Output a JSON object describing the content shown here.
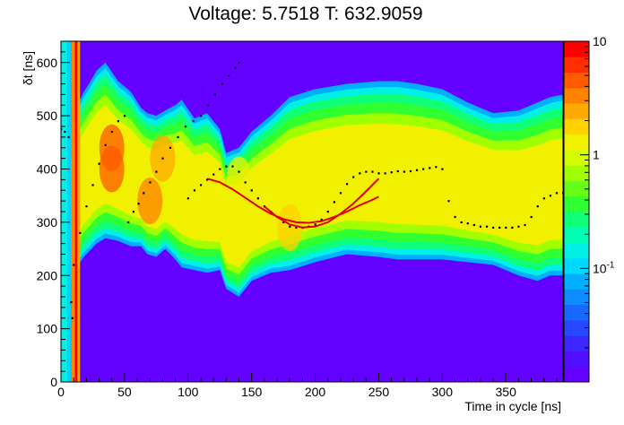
{
  "chart_data": {
    "type": "heatmap",
    "title": "Voltage: 5.7518 T: 632.9059",
    "xlabel": "Time in cycle [ns]",
    "ylabel": "δt [ns]",
    "xlim": [
      0,
      395
    ],
    "ylim": [
      0,
      640
    ],
    "x_ticks": [
      0,
      50,
      100,
      150,
      200,
      250,
      300,
      350
    ],
    "y_ticks": [
      0,
      100,
      200,
      300,
      400,
      500,
      600
    ],
    "z_scale": "log",
    "z_range": [
      0.01,
      10
    ],
    "z_tick_labels": [
      {
        "value": 10,
        "label": "10"
      },
      {
        "value": 1,
        "label": "1"
      },
      {
        "value": 0.1,
        "label": "10",
        "sup": "-1"
      }
    ],
    "background_color": "#6300ff",
    "palette": [
      "#6400ff",
      "#5010ff",
      "#3c28ff",
      "#2848ff",
      "#1868ff",
      "#0c8cff",
      "#00b0ff",
      "#00d8ff",
      "#00f0e6",
      "#00ffb4",
      "#10ff78",
      "#30ff30",
      "#64ff14",
      "#a0ff00",
      "#d2ff00",
      "#f0f000",
      "#ffd200",
      "#ffaa00",
      "#ff8200",
      "#ff5a00",
      "#ff2d00",
      "#ff0000"
    ],
    "band": {
      "x": [
        0,
        6,
        12,
        15,
        18,
        22,
        28,
        35,
        45,
        55,
        63,
        68,
        75,
        82,
        90,
        95,
        105,
        115,
        125,
        130,
        140,
        150,
        165,
        180,
        200,
        225,
        250,
        265,
        280,
        300,
        320,
        340,
        360,
        375,
        385,
        395
      ],
      "upper": [
        430,
        460,
        500,
        530,
        545,
        560,
        585,
        600,
        565,
        545,
        515,
        505,
        500,
        510,
        520,
        530,
        495,
        505,
        475,
        430,
        440,
        470,
        500,
        535,
        550,
        560,
        565,
        565,
        560,
        550,
        525,
        505,
        510,
        525,
        535,
        540
      ],
      "lower": [
        150,
        175,
        205,
        225,
        235,
        245,
        260,
        270,
        265,
        255,
        255,
        240,
        235,
        250,
        230,
        215,
        210,
        205,
        210,
        175,
        160,
        190,
        205,
        210,
        225,
        240,
        235,
        230,
        230,
        230,
        225,
        220,
        200,
        190,
        200,
        200
      ]
    },
    "stripes": [
      {
        "x": [
          0,
          5
        ],
        "level": "#00f0e6"
      },
      {
        "x": [
          5,
          8
        ],
        "level": "#00d0ff"
      },
      {
        "x": [
          8,
          11
        ],
        "level": "#ff8200"
      },
      {
        "x": [
          11,
          13
        ],
        "level": "#ff0000"
      },
      {
        "x": [
          13,
          15
        ],
        "level": "#ffaa00"
      }
    ],
    "hotspots": [
      {
        "x": 40,
        "y": 440,
        "level": "#ff5a00"
      },
      {
        "x": 40,
        "y": 400,
        "level": "#ff5a00"
      },
      {
        "x": 70,
        "y": 340,
        "level": "#ff8200"
      },
      {
        "x": 80,
        "y": 420,
        "level": "#ffaa00"
      },
      {
        "x": 140,
        "y": 380,
        "level": "#f0f000"
      },
      {
        "x": 180,
        "y": 290,
        "level": "#ffd200"
      },
      {
        "x": 215,
        "y": 360,
        "level": "#f0f000"
      }
    ],
    "series": [
      {
        "marker": "dots",
        "color": "#000000",
        "x": [
          10,
          15,
          20,
          25,
          30,
          35,
          40,
          45,
          50,
          53,
          57,
          61,
          65,
          70,
          75,
          80,
          86,
          92,
          98,
          104,
          110,
          116,
          121,
          127,
          132,
          137,
          140
        ],
        "y": [
          220,
          280,
          330,
          370,
          410,
          445,
          470,
          490,
          500,
          300,
          320,
          335,
          355,
          375,
          395,
          420,
          440,
          460,
          480,
          490,
          500,
          520,
          540,
          560,
          575,
          590,
          600
        ]
      },
      {
        "marker": "dots",
        "color": "#000000",
        "x": [
          0,
          3,
          6,
          8,
          9
        ],
        "y": [
          475,
          470,
          460,
          150,
          120
        ]
      },
      {
        "marker": "dots",
        "color": "#000000",
        "x": [
          100,
          105,
          110,
          115,
          120,
          125,
          130,
          135,
          140,
          145,
          150,
          155,
          160,
          165,
          170,
          175,
          180,
          185,
          190,
          195,
          200,
          205,
          210,
          215,
          220,
          225,
          230,
          235,
          240,
          245,
          250,
          255,
          260,
          265,
          270,
          275,
          280,
          285,
          290,
          295,
          300,
          305,
          310,
          315,
          320,
          325,
          330,
          335,
          340,
          345,
          350,
          355,
          360,
          365,
          370,
          375,
          380,
          385,
          390,
          395
        ],
        "y": [
          345,
          360,
          370,
          380,
          390,
          400,
          405,
          405,
          395,
          375,
          360,
          345,
          330,
          320,
          310,
          300,
          292,
          290,
          290,
          292,
          296,
          305,
          320,
          338,
          355,
          372,
          385,
          392,
          395,
          395,
          392,
          392,
          394,
          396,
          395,
          396,
          398,
          400,
          402,
          404,
          400,
          340,
          310,
          300,
          298,
          295,
          292,
          292,
          290,
          290,
          290,
          290,
          292,
          295,
          310,
          330,
          345,
          350,
          355,
          355
        ]
      },
      {
        "marker": "line",
        "color": "#e00000",
        "x": [
          115,
          125,
          135,
          145,
          155,
          165,
          175,
          185,
          195,
          205,
          215,
          225,
          235,
          245,
          250
        ],
        "y": [
          382,
          375,
          362,
          346,
          330,
          316,
          306,
          300,
          299,
          302,
          310,
          320,
          332,
          342,
          348
        ]
      },
      {
        "marker": "line",
        "color": "#e00000",
        "x": [
          160,
          170,
          180,
          190,
          200,
          210,
          220,
          230,
          240,
          250
        ],
        "y": [
          330,
          310,
          296,
          290,
          292,
          300,
          316,
          335,
          358,
          382
        ]
      }
    ]
  }
}
